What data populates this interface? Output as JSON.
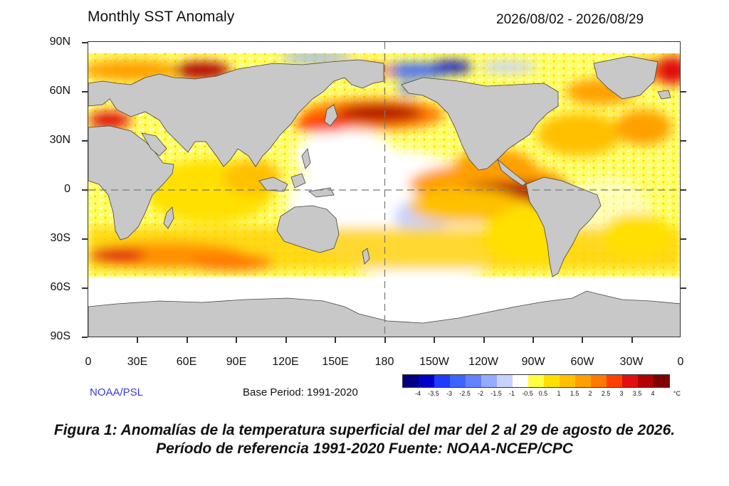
{
  "figure": {
    "title": "Monthly SST Anomaly",
    "date_range": "2026/08/02 - 2026/08/29",
    "credit": "NOAA/PSL",
    "base_period": "Base Period: 1991-2020",
    "caption": "Figura 1: Anomalías de la temperatura superficial del mar del 2 al 29 de agosto de 2026. Período de referencia 1991-2020 Fuente: NOAA-NCEP/CPC"
  },
  "axes": {
    "lat_labels": [
      "90N",
      "60N",
      "30N",
      "0",
      "30S",
      "60S",
      "90S"
    ],
    "lon_labels": [
      "0",
      "30E",
      "60E",
      "90E",
      "120E",
      "150E",
      "180",
      "150W",
      "120W",
      "90W",
      "60W",
      "30W",
      "0"
    ]
  },
  "colorbar": {
    "colors": [
      "#000080",
      "#0000c8",
      "#1e3cff",
      "#3c64ff",
      "#6482ff",
      "#96aaff",
      "#c8d2ff",
      "#ffffff",
      "#ffff40",
      "#ffe000",
      "#ffc000",
      "#ffa000",
      "#ff7800",
      "#ff4000",
      "#e01010",
      "#b00000",
      "#800000"
    ],
    "labels": [
      "-4",
      "-3.5",
      "-3",
      "-2.5",
      "-2",
      "-1.5",
      "-1",
      "-0.5",
      "0.5",
      "1",
      "1.5",
      "2",
      "2.5",
      "3",
      "3.5",
      "4"
    ],
    "unit": "°C"
  },
  "colors": {
    "land": "#c8c8c8",
    "coast": "#444444",
    "credit": "#3a3ae0"
  }
}
